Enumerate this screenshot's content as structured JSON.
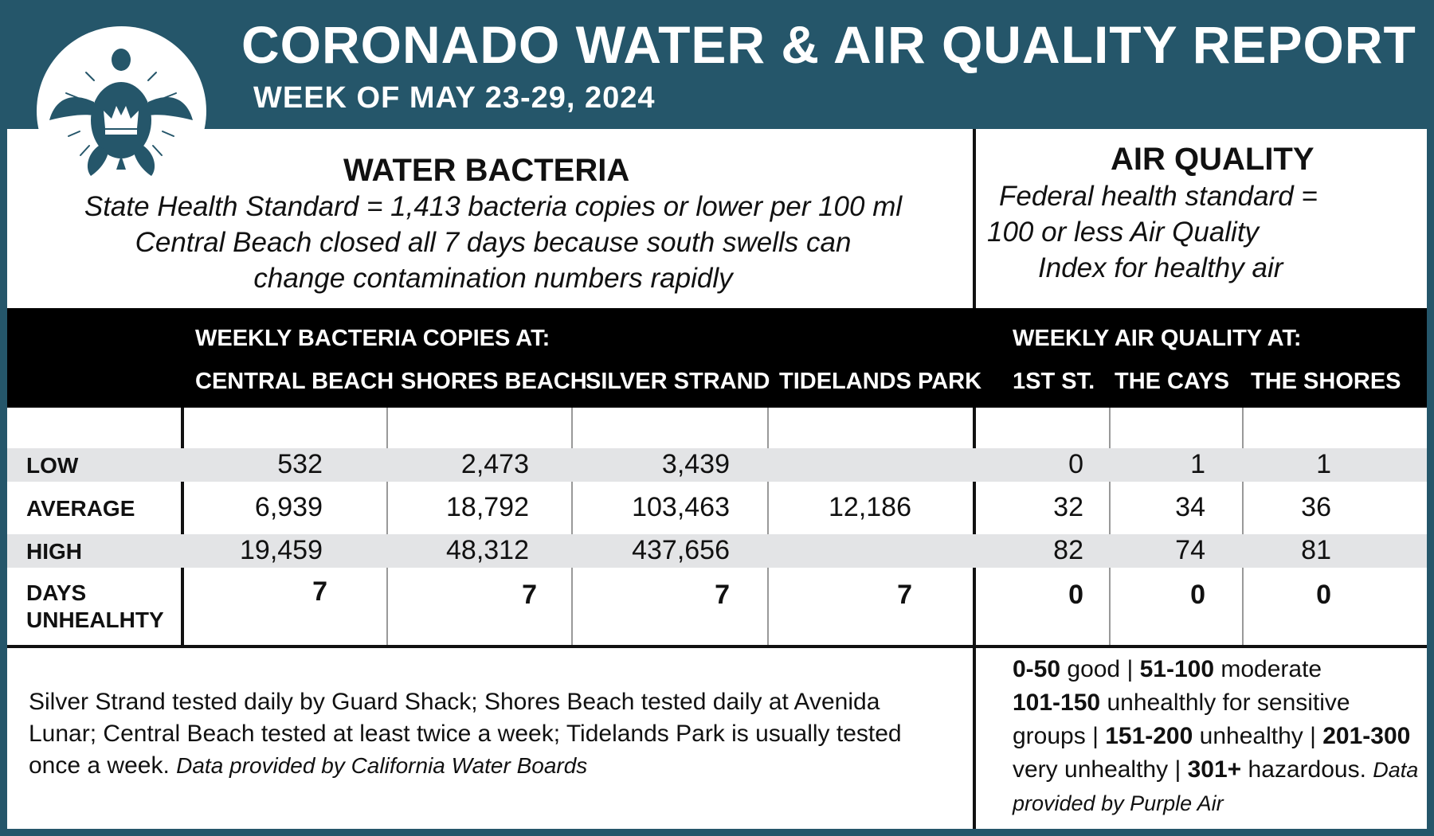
{
  "header": {
    "title": "CORONADO WATER & AIR QUALITY REPORT",
    "subtitle": "WEEK OF MAY 23-29, 2024"
  },
  "logo": {
    "icon": "turtle-crown-logo"
  },
  "water": {
    "heading": "WATER BACTERIA",
    "line1": "State Health Standard  = 1,413 bacteria copies or lower per 100 ml",
    "line2": "Central Beach closed all 7 days because south swells can",
    "line3": "change contamination numbers rapidly",
    "band_title": "WEEKLY BACTERIA COPIES AT:",
    "columns": [
      "CENTRAL BEACH",
      "SHORES BEACH",
      "SILVER STRAND",
      "TIDELANDS PARK"
    ]
  },
  "air": {
    "heading": "AIR QUALITY",
    "line1": "Federal health standard =",
    "line2": "100 or less Air Quality",
    "line3": "Index for healthy air",
    "band_title": "WEEKLY AIR QUALITY AT:",
    "columns": [
      "1ST ST.",
      "THE CAYS",
      "THE SHORES"
    ]
  },
  "rows": [
    {
      "label": "LOW",
      "water": [
        "532",
        "2,473",
        "3,439",
        ""
      ],
      "air": [
        "0",
        "1",
        "1"
      ]
    },
    {
      "label": "AVERAGE",
      "water": [
        "6,939",
        "18,792",
        "103,463",
        "12,186"
      ],
      "air": [
        "32",
        "34",
        "36"
      ]
    },
    {
      "label": "HIGH",
      "water": [
        "19,459",
        "48,312",
        "437,656",
        ""
      ],
      "air": [
        "82",
        "74",
        "81"
      ]
    },
    {
      "label_line1": "DAYS",
      "label_line2": "UNHEALHTY",
      "water": [
        "7",
        "7",
        "7",
        "7"
      ],
      "air": [
        "0",
        "0",
        "0"
      ]
    }
  ],
  "footer": {
    "water_note": "Silver Strand tested daily by Guard Shack; Shores Beach tested daily at Avenida Lunar; Central Beach tested at least twice a week; Tidelands Park is usually tested once a week.",
    "water_source": "Data provided by California Water Boards",
    "legend": {
      "r1": "0-50",
      "t1": " good | ",
      "r2": "51-100",
      "t2": " moderate",
      "r3": "101-150",
      "t3": " unhealthly for sensitive groups | ",
      "r4": "151-200",
      "t4": " unhealthy | ",
      "r5": "201-300",
      "t5": " very unhealthy | ",
      "r6": "301+",
      "t6": " hazardous. ",
      "source": "Data provided by Purple Air"
    }
  },
  "colors": {
    "frame": "#25566a",
    "band": "#000000",
    "stripe": "#e3e4e6"
  }
}
